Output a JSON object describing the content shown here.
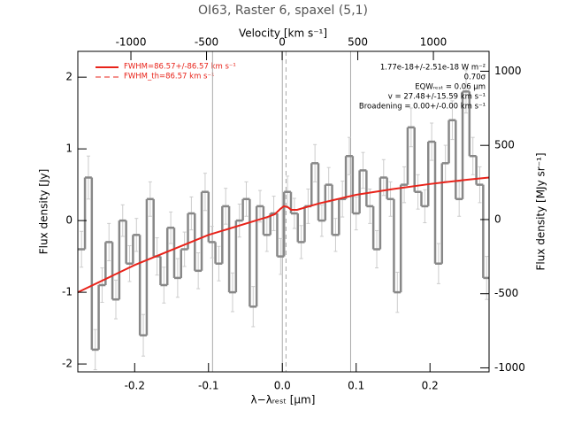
{
  "chart_data": {
    "type": "line",
    "title": "OI63, Raster 6, spaxel (5,1)",
    "xlabel": "λ−λᵣₑₛₜ [μm]",
    "x2label": "Velocity [km s⁻¹]",
    "ylabel": "Flux density [Jy]",
    "y2label": "Flux density [MJy sr⁻¹]",
    "xlim": [
      -0.277,
      0.28
    ],
    "xticks": [
      -0.2,
      -0.1,
      {
        "value": 0,
        "label": "0.0"
      },
      0.1,
      0.2
    ],
    "x2lim": [
      -1351,
      1368
    ],
    "x2ticks": [
      -1000,
      -500,
      0,
      500,
      1000
    ],
    "ylim": [
      -2.11,
      2.36
    ],
    "yticks": [
      -2,
      -1,
      0,
      1,
      2
    ],
    "y2lim": [
      -1027,
      1134
    ],
    "y2ticks": [
      -1000,
      -500,
      0,
      500,
      1000
    ],
    "vlines": [
      -0.0945,
      0,
      0.0925
    ],
    "dashed_vlines": [
      0.005
    ],
    "spectrum": {
      "color": "#888888",
      "x": [
        -0.272,
        -0.2627,
        -0.2534,
        -0.2441,
        -0.2348,
        -0.2255,
        -0.2162,
        -0.2069,
        -0.1976,
        -0.1883,
        -0.179,
        -0.1697,
        -0.1604,
        -0.1511,
        -0.1418,
        -0.1325,
        -0.1232,
        -0.1139,
        -0.1046,
        -0.0953,
        -0.086,
        -0.0767,
        -0.0674,
        -0.0581,
        -0.0488,
        -0.0395,
        -0.0302,
        -0.0209,
        -0.0116,
        -0.0023,
        0.007,
        0.0163,
        0.0256,
        0.0349,
        0.0442,
        0.0535,
        0.0628,
        0.0721,
        0.0814,
        0.0907,
        0.1,
        0.1093,
        0.1186,
        0.1279,
        0.1372,
        0.1465,
        0.1558,
        0.1651,
        0.1744,
        0.1837,
        0.193,
        0.2023,
        0.2116,
        0.2209,
        0.2302,
        0.2395,
        0.2488,
        0.2581,
        0.2674,
        0.2767
      ],
      "values": [
        -0.4,
        0.6,
        -1.8,
        -0.9,
        -0.3,
        -1.1,
        0.0,
        -0.6,
        -0.2,
        -1.6,
        0.3,
        -0.5,
        -0.9,
        -0.1,
        -0.8,
        -0.4,
        0.1,
        -0.7,
        0.4,
        -0.3,
        -0.6,
        0.2,
        -1.0,
        0.0,
        0.3,
        -1.2,
        0.2,
        -0.2,
        0.1,
        -0.5,
        0.4,
        0.1,
        -0.3,
        0.2,
        0.8,
        0.0,
        0.5,
        -0.2,
        0.3,
        0.9,
        0.1,
        0.7,
        0.2,
        -0.4,
        0.6,
        0.3,
        -1.0,
        0.5,
        1.3,
        0.4,
        0.2,
        1.1,
        -0.6,
        0.8,
        1.4,
        0.3,
        1.8,
        0.9,
        0.5,
        -0.8
      ],
      "errors": [
        0.25,
        0.3,
        0.28,
        0.24,
        0.26,
        0.27,
        0.22,
        0.25,
        0.23,
        0.29,
        0.24,
        0.26,
        0.25,
        0.22,
        0.27,
        0.24,
        0.23,
        0.25,
        0.26,
        0.22,
        0.24,
        0.25,
        0.27,
        0.23,
        0.24,
        0.28,
        0.22,
        0.23,
        0.24,
        0.25,
        0.22,
        0.21,
        0.23,
        0.24,
        0.26,
        0.22,
        0.24,
        0.23,
        0.25,
        0.26,
        0.23,
        0.25,
        0.24,
        0.26,
        0.25,
        0.24,
        0.28,
        0.25,
        0.27,
        0.24,
        0.23,
        0.26,
        0.28,
        0.25,
        0.27,
        0.24,
        0.3,
        0.26,
        0.25,
        0.3
      ]
    },
    "fit": {
      "name": "FWHM=86.57+/-86.57 km s⁻¹",
      "color": "#e8231a",
      "x": [
        -0.277,
        -0.2,
        -0.1,
        -0.02,
        -0.01,
        -0.003,
        0.002,
        0.007,
        0.012,
        0.02,
        0.05,
        0.1,
        0.15,
        0.2,
        0.25,
        0.28
      ],
      "values": [
        -1.0,
        -0.62,
        -0.2,
        0.05,
        0.09,
        0.16,
        0.2,
        0.19,
        0.15,
        0.15,
        0.24,
        0.36,
        0.44,
        0.51,
        0.57,
        0.6
      ]
    },
    "fit_th": {
      "name": "FWHM_th=86.57 km s⁻¹",
      "color": "#e8231a"
    },
    "annotations": [
      "1.77e-18+/-2.51e-18 W m⁻²",
      "0.70σ",
      "EQWᵣₑₛₜ = 0.06 μm",
      "v = 27.48+/-15.59 km s⁻¹",
      "Broadening = 0.00+/-0.00 km s⁻¹"
    ]
  }
}
